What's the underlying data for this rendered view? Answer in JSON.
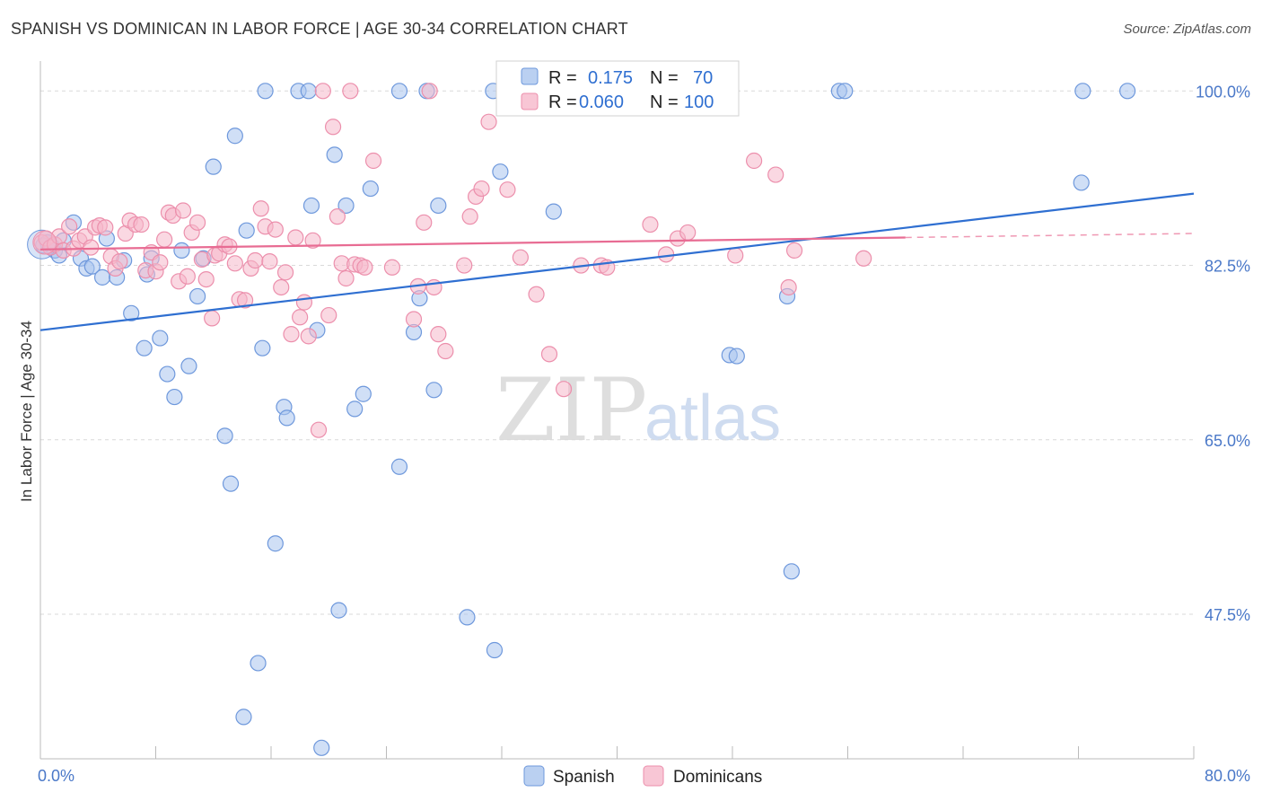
{
  "title": "SPANISH VS DOMINICAN IN LABOR FORCE | AGE 30-34 CORRELATION CHART",
  "source": "Source: ZipAtlas.com",
  "watermark": {
    "zip": "ZIP",
    "atlas": "atlas"
  },
  "colors": {
    "spanish_fill": "#a9c4ee",
    "spanish_stroke": "#6e98dc",
    "spanish_line": "#2f6fd1",
    "dominican_fill": "#f6b8cb",
    "dominican_stroke": "#ec8fac",
    "dominican_line": "#e86c93",
    "grid": "#d9d9d9",
    "tick_label": "#4a78c8"
  },
  "legend": {
    "rows": [
      {
        "r_label": "R =",
        "r_value": "0.175",
        "n_label": "N =",
        "n_value": "70"
      },
      {
        "r_label": "R =",
        "r_value": "0.060",
        "n_label": "N =",
        "n_value": "100"
      }
    ]
  },
  "chart_data": {
    "type": "scatter",
    "title": "SPANISH VS DOMINICAN IN LABOR FORCE | AGE 30-34 CORRELATION CHART",
    "xlabel": "",
    "ylabel": "In Labor Force | Age 30-34",
    "xlim": [
      0,
      80
    ],
    "ylim": [
      33,
      103
    ],
    "x_tick_labels": [
      {
        "value": 0,
        "label": "0.0%"
      },
      {
        "value": 80,
        "label": "80.0%"
      }
    ],
    "y_tick_labels": [
      {
        "value": 100,
        "label": "100.0%"
      },
      {
        "value": 82.5,
        "label": "82.5%"
      },
      {
        "value": 65,
        "label": "65.0%"
      },
      {
        "value": 47.5,
        "label": "47.5%"
      }
    ],
    "x_minor_ticks": [
      0,
      8,
      16,
      24,
      32,
      40,
      48,
      56,
      64,
      72,
      80
    ],
    "grid": true,
    "legend_position": "top-center",
    "series": [
      {
        "name": "Spanish",
        "R": 0.175,
        "N": 70,
        "trend": {
          "x": [
            0,
            80
          ],
          "y": [
            76.0,
            89.7
          ]
        },
        "points": [
          [
            0.2,
            84.5
          ],
          [
            0.5,
            84.8
          ],
          [
            0.8,
            84.4
          ],
          [
            1.0,
            84.0
          ],
          [
            1.3,
            83.5
          ],
          [
            1.6,
            85.0
          ],
          [
            2.3,
            86.8
          ],
          [
            2.8,
            83.2
          ],
          [
            3.2,
            82.2
          ],
          [
            3.6,
            82.4
          ],
          [
            4.3,
            81.3
          ],
          [
            4.6,
            85.2
          ],
          [
            5.3,
            81.3
          ],
          [
            5.8,
            83.0
          ],
          [
            6.3,
            77.7
          ],
          [
            7.2,
            74.2
          ],
          [
            7.4,
            81.6
          ],
          [
            7.7,
            83.2
          ],
          [
            8.3,
            75.2
          ],
          [
            8.8,
            71.6
          ],
          [
            9.3,
            69.3
          ],
          [
            9.8,
            84.0
          ],
          [
            10.3,
            72.4
          ],
          [
            10.9,
            79.4
          ],
          [
            11.3,
            83.2
          ],
          [
            12.0,
            92.4
          ],
          [
            12.8,
            65.4
          ],
          [
            13.2,
            60.6
          ],
          [
            13.5,
            95.5
          ],
          [
            14.1,
            37.2
          ],
          [
            14.3,
            86.0
          ],
          [
            15.1,
            42.6
          ],
          [
            15.4,
            74.2
          ],
          [
            15.6,
            100
          ],
          [
            16.3,
            54.6
          ],
          [
            16.9,
            68.3
          ],
          [
            17.1,
            67.2
          ],
          [
            17.9,
            100
          ],
          [
            18.6,
            100
          ],
          [
            18.8,
            88.5
          ],
          [
            19.2,
            76.0
          ],
          [
            19.5,
            34.1
          ],
          [
            20.4,
            93.6
          ],
          [
            20.7,
            47.9
          ],
          [
            21.2,
            88.5
          ],
          [
            21.8,
            68.1
          ],
          [
            22.4,
            69.6
          ],
          [
            22.9,
            90.2
          ],
          [
            24.9,
            100
          ],
          [
            24.9,
            62.3
          ],
          [
            25.9,
            75.8
          ],
          [
            26.3,
            79.2
          ],
          [
            26.8,
            100
          ],
          [
            27.3,
            70.0
          ],
          [
            27.6,
            88.5
          ],
          [
            29.6,
            47.2
          ],
          [
            31.5,
            43.9
          ],
          [
            31.4,
            100
          ],
          [
            31.9,
            91.9
          ],
          [
            35.6,
            87.9
          ],
          [
            36.7,
            100
          ],
          [
            47.8,
            73.5
          ],
          [
            48.3,
            73.4
          ],
          [
            51.8,
            79.4
          ],
          [
            52.1,
            51.8
          ],
          [
            55.4,
            100
          ],
          [
            55.8,
            100
          ],
          [
            72.2,
            90.8
          ],
          [
            72.3,
            100
          ],
          [
            75.4,
            100
          ]
        ]
      },
      {
        "name": "Dominicans",
        "R": 0.06,
        "N": 100,
        "trend": {
          "x": [
            0,
            60
          ],
          "y": [
            84.1,
            85.3
          ]
        },
        "trend_dashed": {
          "x": [
            60,
            80
          ],
          "y": [
            85.3,
            85.7
          ]
        },
        "points": [
          [
            0.1,
            84.8
          ],
          [
            0.4,
            85.2
          ],
          [
            0.7,
            84.3
          ],
          [
            1.0,
            84.6
          ],
          [
            1.3,
            85.4
          ],
          [
            1.6,
            84.0
          ],
          [
            2.0,
            86.4
          ],
          [
            2.3,
            84.2
          ],
          [
            2.7,
            85.0
          ],
          [
            3.1,
            85.4
          ],
          [
            3.5,
            84.3
          ],
          [
            3.8,
            86.3
          ],
          [
            4.1,
            86.5
          ],
          [
            4.5,
            86.3
          ],
          [
            4.9,
            83.4
          ],
          [
            5.2,
            82.2
          ],
          [
            5.5,
            82.9
          ],
          [
            5.9,
            85.7
          ],
          [
            6.2,
            87.0
          ],
          [
            6.6,
            86.6
          ],
          [
            7.0,
            86.6
          ],
          [
            7.3,
            82.0
          ],
          [
            7.7,
            83.8
          ],
          [
            8.0,
            81.9
          ],
          [
            8.3,
            82.8
          ],
          [
            8.6,
            85.1
          ],
          [
            8.9,
            87.8
          ],
          [
            9.2,
            87.5
          ],
          [
            9.6,
            80.9
          ],
          [
            9.9,
            88.0
          ],
          [
            10.2,
            81.4
          ],
          [
            10.5,
            85.8
          ],
          [
            10.9,
            86.8
          ],
          [
            11.2,
            83.1
          ],
          [
            11.5,
            81.1
          ],
          [
            11.9,
            77.2
          ],
          [
            12.1,
            83.5
          ],
          [
            12.4,
            83.7
          ],
          [
            12.8,
            84.6
          ],
          [
            13.1,
            84.4
          ],
          [
            13.5,
            82.7
          ],
          [
            13.8,
            79.1
          ],
          [
            14.2,
            79.0
          ],
          [
            14.6,
            82.2
          ],
          [
            14.9,
            83.0
          ],
          [
            15.3,
            88.2
          ],
          [
            15.6,
            86.4
          ],
          [
            15.9,
            82.9
          ],
          [
            16.3,
            86.1
          ],
          [
            16.7,
            80.3
          ],
          [
            17.0,
            81.8
          ],
          [
            17.4,
            75.6
          ],
          [
            17.7,
            85.3
          ],
          [
            18.0,
            77.3
          ],
          [
            18.3,
            78.8
          ],
          [
            18.6,
            75.4
          ],
          [
            18.9,
            85.0
          ],
          [
            19.3,
            66.0
          ],
          [
            19.6,
            100
          ],
          [
            20.0,
            77.5
          ],
          [
            20.3,
            96.4
          ],
          [
            20.6,
            87.4
          ],
          [
            20.9,
            82.7
          ],
          [
            21.2,
            81.2
          ],
          [
            21.5,
            100
          ],
          [
            21.8,
            82.6
          ],
          [
            22.2,
            82.5
          ],
          [
            22.5,
            82.3
          ],
          [
            23.1,
            93.0
          ],
          [
            24.4,
            82.3
          ],
          [
            25.9,
            77.1
          ],
          [
            26.2,
            80.4
          ],
          [
            26.6,
            86.8
          ],
          [
            27.0,
            100
          ],
          [
            27.3,
            80.3
          ],
          [
            27.6,
            75.6
          ],
          [
            28.1,
            73.9
          ],
          [
            29.4,
            82.5
          ],
          [
            29.8,
            87.4
          ],
          [
            30.2,
            89.4
          ],
          [
            30.6,
            90.2
          ],
          [
            31.1,
            96.9
          ],
          [
            32.4,
            90.1
          ],
          [
            33.3,
            83.3
          ],
          [
            34.4,
            79.6
          ],
          [
            35.3,
            73.6
          ],
          [
            36.3,
            70.1
          ],
          [
            37.5,
            82.5
          ],
          [
            38.9,
            82.5
          ],
          [
            39.3,
            82.3
          ],
          [
            42.3,
            86.6
          ],
          [
            43.4,
            83.6
          ],
          [
            44.2,
            85.2
          ],
          [
            44.9,
            85.8
          ],
          [
            48.2,
            83.5
          ],
          [
            49.5,
            93.0
          ],
          [
            51.0,
            91.6
          ],
          [
            51.9,
            80.3
          ],
          [
            52.3,
            84.0
          ],
          [
            57.1,
            83.2
          ]
        ]
      }
    ]
  }
}
